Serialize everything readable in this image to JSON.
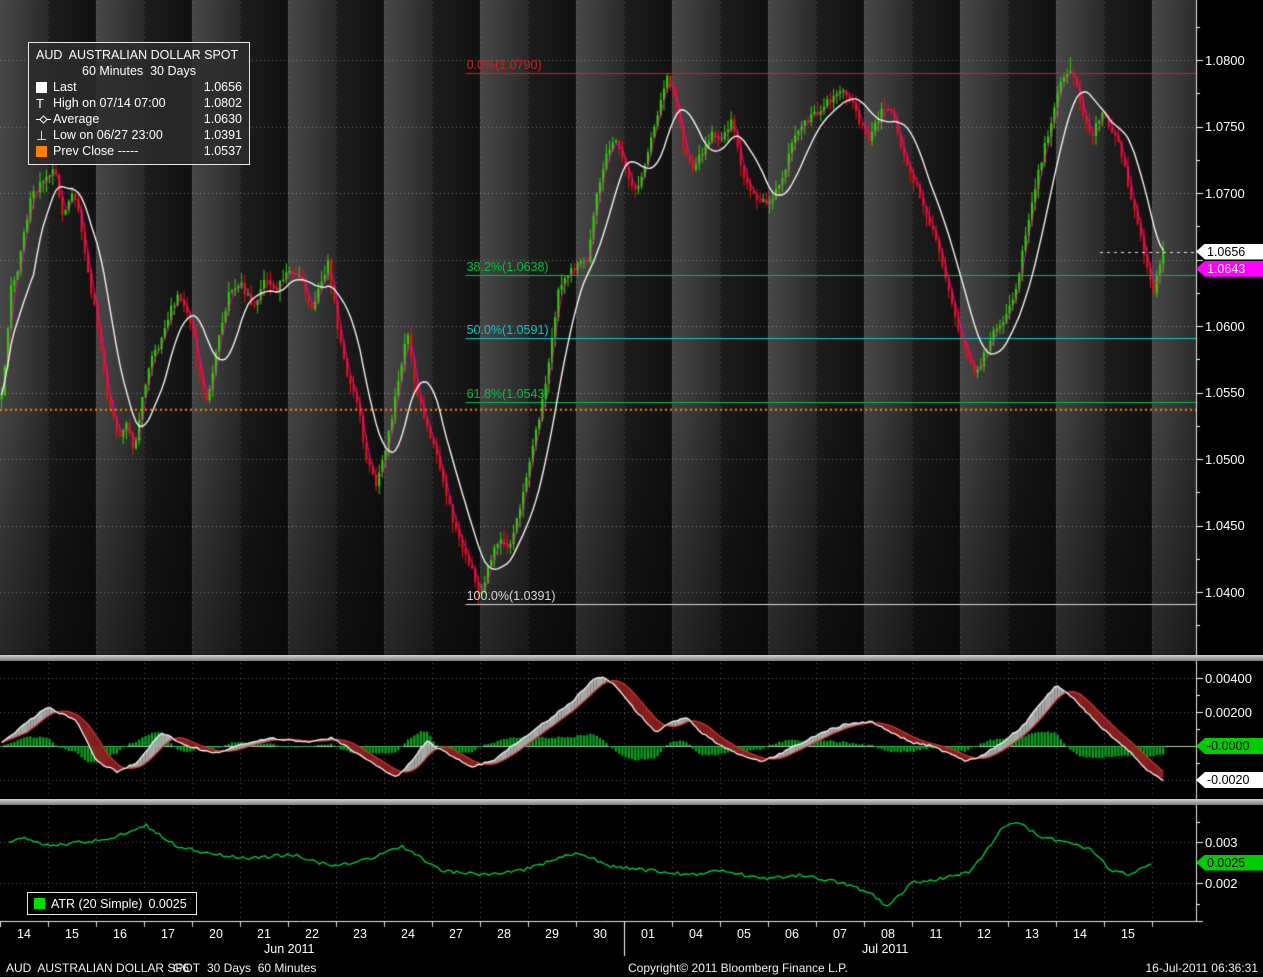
{
  "legend": {
    "title": "AUD  AUSTRALIAN DOLLAR SPOT",
    "subtitle": "60 Minutes  30 Days",
    "rows": [
      {
        "icon": "last-square-icon",
        "label": "Last",
        "value": "1.0656"
      },
      {
        "icon": "high-tick-icon",
        "label": "High on 07/14 07:00",
        "value": "1.0802"
      },
      {
        "icon": "average-line-icon",
        "label": "Average",
        "value": "1.0630"
      },
      {
        "icon": "low-tick-icon",
        "label": "Low on 06/27 23:00",
        "value": "1.0391"
      },
      {
        "icon": "prev-close-square-icon",
        "label": "Prev Close -----",
        "value": "1.0537"
      }
    ]
  },
  "atr_legend": {
    "icon": "atr-square-icon",
    "label": "ATR (20 Simple)",
    "value": "0.0025"
  },
  "price_axis": {
    "tick_labels": [
      "1.0800",
      "1.0750",
      "1.0700",
      "1.0600",
      "1.0550",
      "1.0500",
      "1.0450",
      "1.0400"
    ],
    "badges": [
      {
        "label": "1.0656",
        "value": 1.0656,
        "bg": "#ffffff",
        "fg": "#000000"
      },
      {
        "label": "1.0643",
        "value": 1.0643,
        "bg": "#ff00ff",
        "fg": "#fff0f8"
      }
    ]
  },
  "macd_axis": {
    "tick_labels": [
      "0.00400",
      "0.00200"
    ],
    "badges": [
      {
        "label": "-0.0000",
        "value": 0.0,
        "bg": "#00cc00",
        "fg": "#000000"
      },
      {
        "label": "-0.0020",
        "value": -0.002,
        "bg": "#ffffff",
        "fg": "#000000"
      }
    ]
  },
  "atr_axis": {
    "tick_labels": [
      "0.003",
      "0.002"
    ],
    "badges": [
      {
        "label": "0.0025",
        "value": 0.0025,
        "bg": "#00cc00",
        "fg": "#000000"
      }
    ]
  },
  "date_axis": {
    "jun_days": [
      "14",
      "15",
      "16",
      "17",
      "20",
      "21",
      "22",
      "23",
      "24",
      "27",
      "28",
      "29",
      "30"
    ],
    "jul_days": [
      "01",
      "04",
      "05",
      "06",
      "07",
      "08",
      "11",
      "12",
      "13",
      "14",
      "15"
    ],
    "jun_label": "Jun 2011",
    "jul_label": "Jul 2011"
  },
  "status_bar": {
    "security": "AUD  AUSTRALIAN DOLLAR SPOT",
    "group": "G6",
    "range": "30 Days  60 Minutes",
    "copyright": "Copyright© 2011 Bloomberg Finance L.P.",
    "timestamp": "16-Jul-2011 06:36:31"
  },
  "colors": {
    "up_candle": "#2fd000",
    "down_candle": "#e41212",
    "average_line": "#f2f2f2",
    "trade_line": "#ff00cc",
    "prev_close": "#ff8000",
    "macd_line": "#f2f2f2",
    "macd_signal": "#d03030",
    "macd_fill_up": "#a8a8a8",
    "macd_fill_down": "#8c1f1f",
    "macd_hist": "#00aa22",
    "atr_line": "#00d23c",
    "band_light": "#484848",
    "band_dark": "#1d1d1d"
  },
  "chart_data": [
    {
      "type": "candlestick",
      "name": "AUD AUSTRALIAN DOLLAR SPOT",
      "period": "60 Minutes",
      "span": "30 Days",
      "ylim": [
        1.0353,
        1.0845
      ],
      "y_ticks": [
        1.08,
        1.075,
        1.07,
        1.06,
        1.055,
        1.05,
        1.045,
        1.04
      ],
      "stats": {
        "last": 1.0656,
        "high": 1.0802,
        "high_time": "07/14 07:00",
        "average": 1.063,
        "low": 1.0391,
        "low_time": "06/27 23:00",
        "prev_close": 1.0537
      },
      "prev_close_line": {
        "price": 1.0537,
        "color": "#ff8000",
        "style": "dotted"
      },
      "fib_start_t": 9.7,
      "fibonacci": [
        {
          "label": "0.0%(1.0790)",
          "pct": 0.0,
          "price": 1.079,
          "color": "#d02020"
        },
        {
          "label": "38.2%(1.0638)",
          "pct": 38.2,
          "price": 1.0638,
          "color": "#00c040"
        },
        {
          "label": "50.0%(1.0591)",
          "pct": 50.0,
          "price": 1.0591,
          "color": "#00c8c8"
        },
        {
          "label": "61.8%(1.0543)",
          "pct": 61.8,
          "price": 1.0543,
          "color": "#00c040"
        },
        {
          "label": "100.0%(1.0391)",
          "pct": 100.0,
          "price": 1.0391,
          "color": "#d8d8d8"
        }
      ],
      "close_path": [
        [
          0,
          1.0545
        ],
        [
          0.1,
          1.0585
        ],
        [
          0.2,
          1.063
        ],
        [
          0.35,
          1.0645
        ],
        [
          0.6,
          1.0695
        ],
        [
          0.9,
          1.071
        ],
        [
          1.1,
          1.0718
        ],
        [
          1.3,
          1.068
        ],
        [
          1.45,
          1.07
        ],
        [
          1.6,
          1.069
        ],
        [
          1.8,
          1.064
        ],
        [
          2.0,
          1.06
        ],
        [
          2.2,
          1.0545
        ],
        [
          2.45,
          1.0515
        ],
        [
          2.6,
          1.053
        ],
        [
          2.75,
          1.0505
        ],
        [
          2.9,
          1.054
        ],
        [
          3.1,
          1.0575
        ],
        [
          3.3,
          1.0585
        ],
        [
          3.5,
          1.061
        ],
        [
          3.7,
          1.0625
        ],
        [
          3.95,
          1.06
        ],
        [
          4.15,
          1.0555
        ],
        [
          4.3,
          1.0545
        ],
        [
          4.5,
          1.059
        ],
        [
          4.75,
          1.0625
        ],
        [
          5.0,
          1.063
        ],
        [
          5.25,
          1.0615
        ],
        [
          5.5,
          1.0635
        ],
        [
          5.7,
          1.0625
        ],
        [
          5.95,
          1.064
        ],
        [
          6.2,
          1.064
        ],
        [
          6.45,
          1.061
        ],
        [
          6.8,
          1.0648
        ],
        [
          7.0,
          1.06
        ],
        [
          7.2,
          1.056
        ],
        [
          7.4,
          1.0545
        ],
        [
          7.6,
          1.05
        ],
        [
          7.8,
          1.048
        ],
        [
          8.0,
          1.0505
        ],
        [
          8.2,
          1.0545
        ],
        [
          8.45,
          1.0597
        ],
        [
          8.6,
          1.056
        ],
        [
          8.8,
          1.053
        ],
        [
          9.0,
          1.051
        ],
        [
          9.2,
          1.048
        ],
        [
          9.4,
          1.0455
        ],
        [
          9.6,
          1.043
        ],
        [
          9.8,
          1.0415
        ],
        [
          9.96,
          1.0395
        ],
        [
          10.15,
          1.042
        ],
        [
          10.35,
          1.044
        ],
        [
          10.55,
          1.043
        ],
        [
          10.75,
          1.0455
        ],
        [
          11.0,
          1.05
        ],
        [
          11.2,
          1.053
        ],
        [
          11.4,
          1.057
        ],
        [
          11.6,
          1.0625
        ],
        [
          11.8,
          1.064
        ],
        [
          12.0,
          1.0645
        ],
        [
          12.2,
          1.065
        ],
        [
          12.4,
          1.07
        ],
        [
          12.6,
          1.073
        ],
        [
          12.8,
          1.074
        ],
        [
          13.0,
          1.072
        ],
        [
          13.2,
          1.07
        ],
        [
          13.4,
          1.072
        ],
        [
          13.6,
          1.075
        ],
        [
          13.85,
          1.0788
        ],
        [
          14.0,
          1.0775
        ],
        [
          14.2,
          1.0735
        ],
        [
          14.4,
          1.072
        ],
        [
          14.6,
          1.073
        ],
        [
          14.8,
          1.0745
        ],
        [
          15.0,
          1.074
        ],
        [
          15.2,
          1.0755
        ],
        [
          15.4,
          1.072
        ],
        [
          15.6,
          1.07
        ],
        [
          15.8,
          1.0695
        ],
        [
          16.0,
          1.069
        ],
        [
          16.25,
          1.071
        ],
        [
          16.5,
          1.074
        ],
        [
          16.75,
          1.0755
        ],
        [
          17.0,
          1.076
        ],
        [
          17.25,
          1.077
        ],
        [
          17.5,
          1.078
        ],
        [
          17.7,
          1.077
        ],
        [
          17.9,
          1.075
        ],
        [
          18.1,
          1.074
        ],
        [
          18.3,
          1.076
        ],
        [
          18.5,
          1.0765
        ],
        [
          18.7,
          1.074
        ],
        [
          18.9,
          1.072
        ],
        [
          19.1,
          1.07
        ],
        [
          19.3,
          1.068
        ],
        [
          19.5,
          1.066
        ],
        [
          19.7,
          1.063
        ],
        [
          19.9,
          1.06
        ],
        [
          20.1,
          1.058
        ],
        [
          20.3,
          1.0565
        ],
        [
          20.5,
          1.058
        ],
        [
          20.7,
          1.06
        ],
        [
          20.9,
          1.0605
        ],
        [
          21.1,
          1.0625
        ],
        [
          21.3,
          1.066
        ],
        [
          21.5,
          1.07
        ],
        [
          21.7,
          1.073
        ],
        [
          21.9,
          1.076
        ],
        [
          22.1,
          1.0785
        ],
        [
          22.3,
          1.0795
        ],
        [
          22.5,
          1.076
        ],
        [
          22.7,
          1.074
        ],
        [
          22.9,
          1.076
        ],
        [
          23.1,
          1.075
        ],
        [
          23.3,
          1.0735
        ],
        [
          23.5,
          1.07
        ],
        [
          23.7,
          1.067
        ],
        [
          23.9,
          1.064
        ],
        [
          24.0,
          1.0625
        ],
        [
          24.1,
          1.0645
        ],
        [
          24.2,
          1.0656
        ]
      ]
    },
    {
      "type": "macd",
      "y_ticks": [
        0.004,
        0.002,
        0.0,
        -0.002
      ],
      "line_path": [
        [
          0,
          0.0002
        ],
        [
          0.94,
          0.0023
        ],
        [
          1.56,
          0.0015
        ],
        [
          1.98,
          -0.0009
        ],
        [
          2.4,
          -0.0015
        ],
        [
          2.81,
          -0.001
        ],
        [
          3.33,
          0.0008
        ],
        [
          3.85,
          0.0
        ],
        [
          4.48,
          -0.0004
        ],
        [
          5.0,
          0.0001
        ],
        [
          5.63,
          0.0005
        ],
        [
          6.25,
          0.0002
        ],
        [
          6.88,
          0.0005
        ],
        [
          7.4,
          -0.0004
        ],
        [
          7.81,
          -0.0012
        ],
        [
          8.23,
          -0.0018
        ],
        [
          8.54,
          -0.0009
        ],
        [
          8.85,
          0.0003
        ],
        [
          9.38,
          -0.0006
        ],
        [
          9.79,
          -0.0012
        ],
        [
          10.21,
          -0.0009
        ],
        [
          10.63,
          0.0
        ],
        [
          11.04,
          0.0008
        ],
        [
          11.46,
          0.0017
        ],
        [
          11.88,
          0.0026
        ],
        [
          12.29,
          0.0038
        ],
        [
          12.5,
          0.0041
        ],
        [
          12.81,
          0.0035
        ],
        [
          13.23,
          0.002
        ],
        [
          13.65,
          0.0008
        ],
        [
          13.96,
          0.0014
        ],
        [
          14.27,
          0.0017
        ],
        [
          14.58,
          0.0008
        ],
        [
          15.0,
          0.0
        ],
        [
          15.42,
          -0.0006
        ],
        [
          15.83,
          -0.0009
        ],
        [
          16.25,
          -0.0004
        ],
        [
          16.67,
          0.0002
        ],
        [
          17.08,
          0.0008
        ],
        [
          17.6,
          0.0013
        ],
        [
          18.13,
          0.0014
        ],
        [
          18.54,
          0.0008
        ],
        [
          18.96,
          0.0002
        ],
        [
          19.38,
          0.0
        ],
        [
          19.79,
          -0.0005
        ],
        [
          20.1,
          -0.0009
        ],
        [
          20.42,
          -0.0006
        ],
        [
          20.83,
          0.0002
        ],
        [
          21.25,
          0.0011
        ],
        [
          21.67,
          0.0026
        ],
        [
          21.98,
          0.0036
        ],
        [
          22.29,
          0.0029
        ],
        [
          22.71,
          0.0017
        ],
        [
          23.13,
          0.0005
        ],
        [
          23.54,
          -0.0004
        ],
        [
          23.85,
          -0.0014
        ],
        [
          24.2,
          -0.002
        ]
      ]
    },
    {
      "type": "line",
      "name": "ATR (20 Simple)",
      "current": 0.0025,
      "y_ticks": [
        0.003,
        0.002
      ],
      "path": [
        [
          0.15,
          0.003
        ],
        [
          0.42,
          0.0031
        ],
        [
          1.04,
          0.0029
        ],
        [
          1.67,
          0.003
        ],
        [
          2.29,
          0.0031
        ],
        [
          3.02,
          0.0034
        ],
        [
          3.65,
          0.0029
        ],
        [
          4.38,
          0.0027
        ],
        [
          5.21,
          0.0026
        ],
        [
          6.04,
          0.0027
        ],
        [
          6.88,
          0.0024
        ],
        [
          7.71,
          0.0026
        ],
        [
          8.33,
          0.0029
        ],
        [
          9.17,
          0.0023
        ],
        [
          10.0,
          0.0022
        ],
        [
          10.83,
          0.0023
        ],
        [
          11.98,
          0.00275
        ],
        [
          12.71,
          0.0024
        ],
        [
          13.54,
          0.0023
        ],
        [
          14.38,
          0.0022
        ],
        [
          15.0,
          0.0023
        ],
        [
          15.83,
          0.0021
        ],
        [
          16.67,
          0.0022
        ],
        [
          17.5,
          0.002
        ],
        [
          18.13,
          0.00175
        ],
        [
          18.44,
          0.0014
        ],
        [
          18.96,
          0.002
        ],
        [
          19.58,
          0.0021
        ],
        [
          20.21,
          0.0023
        ],
        [
          20.83,
          0.0033
        ],
        [
          21.15,
          0.0035
        ],
        [
          21.67,
          0.0031
        ],
        [
          22.29,
          0.003
        ],
        [
          22.71,
          0.0028
        ],
        [
          23.13,
          0.0023
        ],
        [
          23.54,
          0.0022
        ],
        [
          23.96,
          0.0025
        ]
      ]
    }
  ]
}
